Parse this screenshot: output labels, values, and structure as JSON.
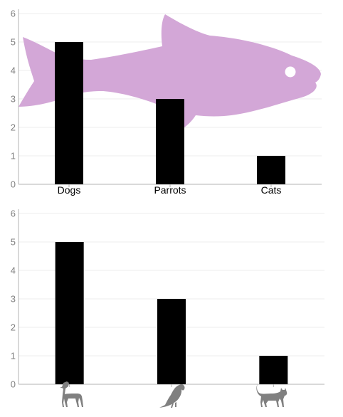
{
  "colors": {
    "bar": "#000000",
    "grid": "#eeeeee",
    "axis": "#b3b3b3",
    "tick_text": "#808080",
    "fish": "#d3a7d7",
    "fish_eye": "#ffffff",
    "pictogram": "#808080"
  },
  "background_image": "fish-silhouette",
  "pictograms": [
    "dog-icon",
    "parrot-icon",
    "cat-icon"
  ],
  "chart_data": [
    {
      "type": "bar",
      "categories": [
        "Dogs",
        "Parrots",
        "Cats"
      ],
      "values": [
        5,
        3,
        1
      ],
      "ylim": [
        0,
        6
      ],
      "yticks": [
        "0",
        "1",
        "2",
        "3",
        "4",
        "5",
        "6"
      ],
      "grid": true,
      "title": "",
      "xlabel": "",
      "ylabel": ""
    },
    {
      "type": "bar",
      "categories": [
        "dog-icon",
        "parrot-icon",
        "cat-icon"
      ],
      "values": [
        5,
        3,
        1
      ],
      "ylim": [
        0,
        6
      ],
      "yticks": [
        "0",
        "1",
        "2",
        "3",
        "4",
        "5",
        "6"
      ],
      "grid": true,
      "title": "",
      "xlabel": "",
      "ylabel": ""
    }
  ]
}
